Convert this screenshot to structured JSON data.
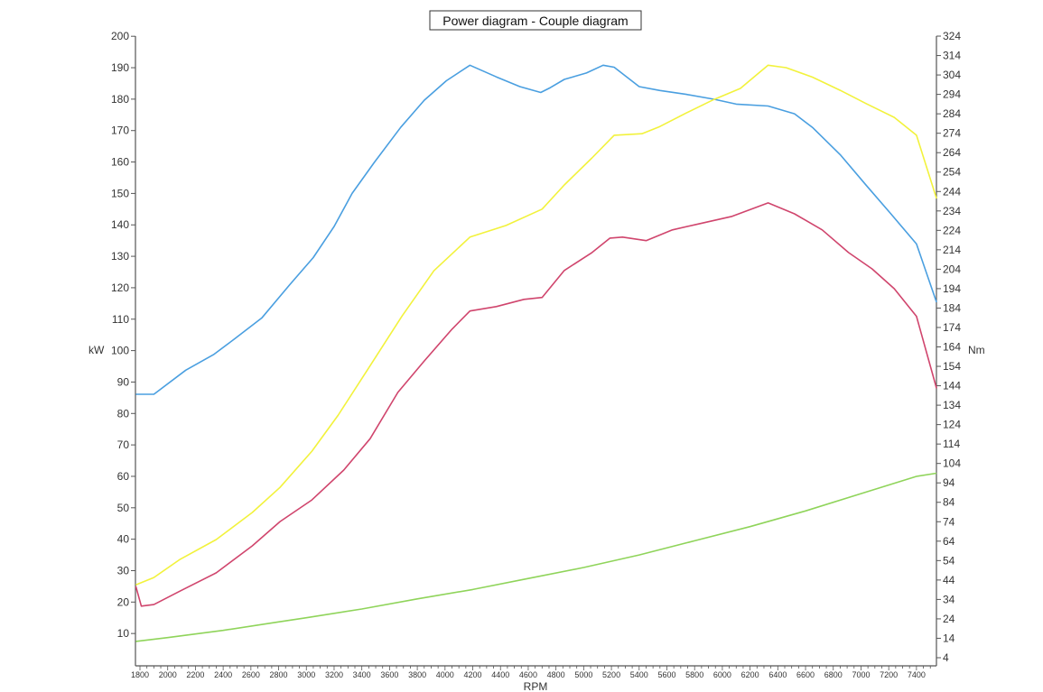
{
  "chart_data": {
    "type": "line",
    "title": "Power diagram - Couple diagram",
    "xlabel": "RPM",
    "ylabel_left": "kW",
    "ylabel_right": "Nm",
    "xlim": [
      1770,
      7545
    ],
    "ylim_left": [
      0,
      200
    ],
    "ylim_right": [
      0,
      324
    ],
    "x_ticks": [
      1800,
      2000,
      2200,
      2400,
      2600,
      2800,
      3000,
      3200,
      3400,
      3600,
      3800,
      4000,
      4200,
      4400,
      4600,
      4800,
      5000,
      5200,
      5400,
      5600,
      5800,
      6000,
      6200,
      6400,
      6600,
      6800,
      7000,
      7200,
      7400
    ],
    "y_left_ticks": [
      10,
      20,
      30,
      40,
      50,
      60,
      70,
      80,
      90,
      100,
      110,
      120,
      130,
      140,
      150,
      160,
      170,
      180,
      190,
      200
    ],
    "y_right_ticks": [
      4,
      14,
      24,
      34,
      44,
      54,
      64,
      74,
      84,
      94,
      104,
      114,
      124,
      134,
      144,
      154,
      164,
      174,
      184,
      194,
      204,
      214,
      224,
      234,
      244,
      254,
      264,
      274,
      284,
      294,
      304,
      314,
      324
    ],
    "grid": false,
    "legend": "none",
    "series": [
      {
        "color": "#4a9fe0",
        "axis": "right",
        "x": [
          1770,
          1900,
          2130,
          2330,
          2480,
          2680,
          2880,
          3050,
          3200,
          3330,
          3490,
          3680,
          3850,
          4010,
          4180,
          4370,
          4540,
          4690,
          4760,
          4860,
          5020,
          5140,
          5220,
          5400,
          5550,
          5740,
          5940,
          6100,
          6330,
          6520,
          6650,
          6850,
          7040,
          7210,
          7400,
          7545
        ],
        "y": [
          139.6,
          139.6,
          152,
          160,
          168,
          179,
          196,
          210,
          226,
          243,
          259,
          277,
          291,
          301,
          309,
          303,
          298,
          295,
          297.5,
          301.7,
          305,
          309,
          308,
          298,
          296,
          294,
          291.5,
          289,
          288,
          284,
          277,
          263,
          247,
          233,
          217,
          187
        ]
      },
      {
        "color": "#f2f23c",
        "axis": "left",
        "x": [
          1770,
          1900,
          2090,
          2350,
          2610,
          2810,
          3040,
          3230,
          3460,
          3690,
          3920,
          4180,
          4440,
          4700,
          4860,
          5060,
          5220,
          5420,
          5550,
          5740,
          5940,
          6130,
          6230,
          6330,
          6460,
          6650,
          6850,
          7040,
          7240,
          7400,
          7545
        ],
        "y": [
          25.5,
          27.8,
          33.6,
          39.9,
          48.5,
          56.5,
          68,
          79.5,
          95.2,
          111,
          125.4,
          136.1,
          139.8,
          145,
          152.7,
          161.3,
          168.5,
          169,
          171.3,
          175.6,
          179.9,
          183.4,
          187.1,
          190.8,
          190,
          187,
          182.8,
          178.5,
          174.2,
          168.5,
          148.4
        ]
      },
      {
        "color": "#d0456d",
        "axis": "left",
        "x": [
          1770,
          1810,
          1900,
          2090,
          2350,
          2610,
          2810,
          3040,
          3270,
          3460,
          3660,
          3850,
          4050,
          4180,
          4370,
          4570,
          4700,
          4860,
          5060,
          5190,
          5280,
          5450,
          5640,
          5840,
          6070,
          6330,
          6520,
          6720,
          6910,
          7080,
          7240,
          7400,
          7545
        ],
        "y": [
          25,
          18.7,
          19.2,
          23.5,
          29.3,
          37.9,
          45.6,
          52.5,
          62,
          72,
          86.7,
          96.7,
          106.8,
          112.6,
          114,
          116.3,
          116.9,
          125.5,
          131.2,
          135.8,
          136.1,
          135,
          138.4,
          140.4,
          142.7,
          147,
          143.5,
          138.4,
          131.2,
          126,
          119.7,
          110.9,
          88
        ]
      },
      {
        "color": "#8fd45a",
        "axis": "left",
        "x": [
          1770,
          2000,
          2400,
          2800,
          3000,
          3400,
          3800,
          4200,
          4600,
          5000,
          5400,
          5800,
          6200,
          6600,
          7000,
          7400,
          7545
        ],
        "y": [
          7.5,
          8.7,
          11,
          13.7,
          15,
          17.8,
          21,
          24,
          27.5,
          31,
          35,
          39.5,
          44,
          49,
          54.5,
          60,
          61
        ]
      }
    ]
  }
}
